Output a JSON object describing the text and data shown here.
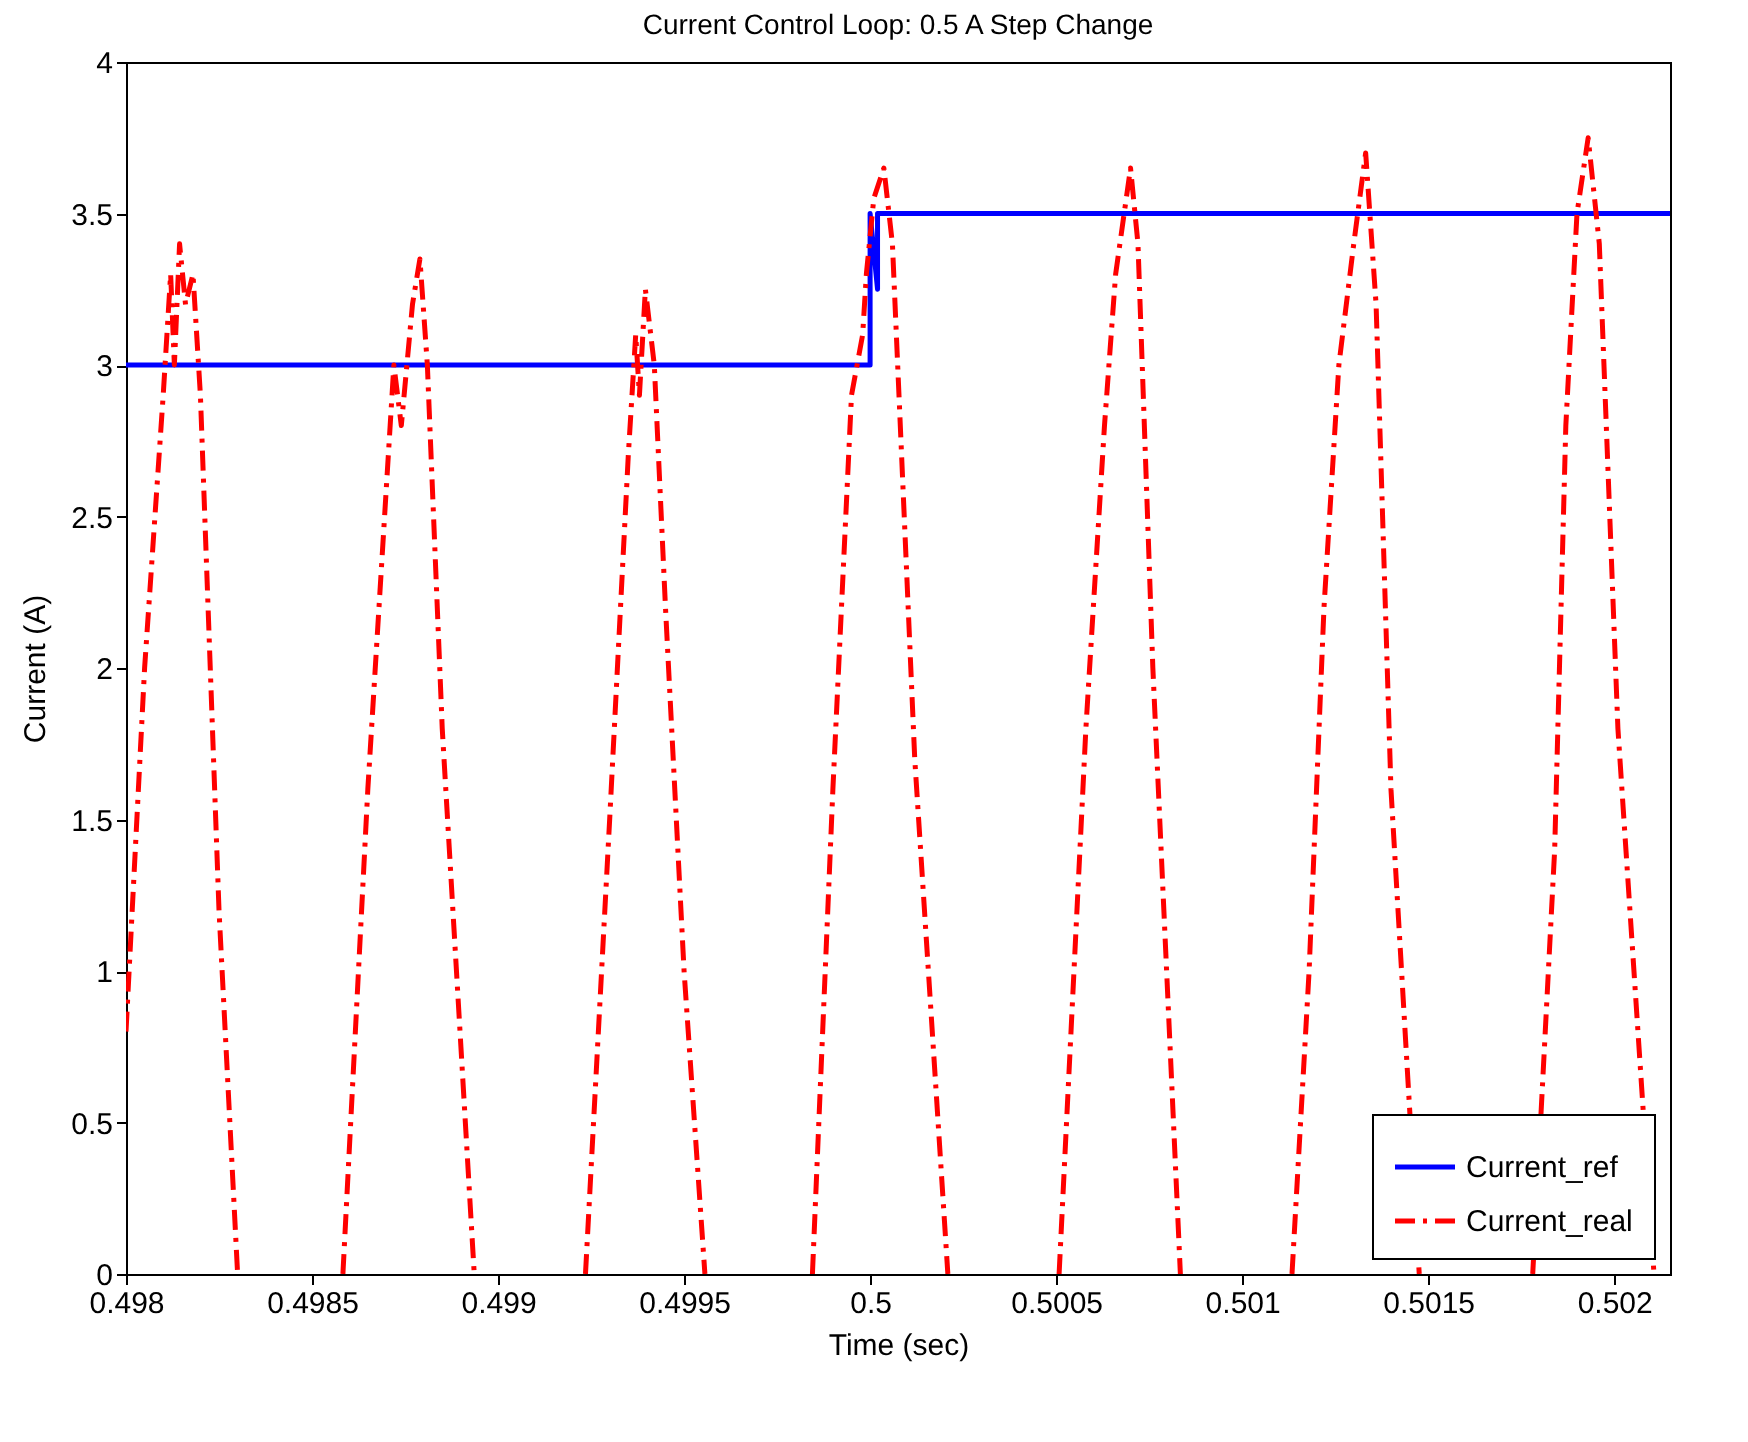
{
  "chart_data": {
    "type": "line",
    "title": "Current Control Loop: 0.5 A Step Change",
    "xlabel": "Time (sec)",
    "ylabel": "Current (A)",
    "xlim": [
      0.498,
      0.50215
    ],
    "xticks": [
      0.498,
      0.4985,
      0.499,
      0.4995,
      0.5,
      0.5005,
      0.501,
      0.5015,
      0.502
    ],
    "ylim": [
      0,
      4
    ],
    "yticks": [
      0,
      0.5,
      1,
      1.5,
      2,
      2.5,
      3,
      3.5,
      4
    ],
    "legend": "bottom right",
    "series": [
      {
        "name": "Current_ref",
        "color": "#0000ff",
        "line_style": "solid",
        "x": [
          0.498,
          0.5,
          0.5,
          0.50002,
          0.50002,
          0.50215
        ],
        "values": [
          3,
          3,
          3.5,
          3.25,
          3.5,
          3.5
        ]
      },
      {
        "name": "Current_real",
        "color": "#ff0000",
        "line_style": "dashdot",
        "x": [
          0.498,
          0.49805,
          0.4981,
          0.49812,
          0.49813,
          0.498144,
          0.49816,
          0.49818,
          0.4982,
          0.49825,
          0.4983,
          0.49845,
          0.498583,
          0.49865,
          0.4987,
          0.49872,
          0.49874,
          0.49877,
          0.49879,
          0.49881,
          0.49885,
          0.498936,
          0.49908,
          0.499235,
          0.4993,
          0.49935,
          0.49937,
          0.49938,
          0.499396,
          0.49942,
          0.49945,
          0.4995,
          0.499556,
          0.4997,
          0.499845,
          0.4999,
          0.49995,
          0.49998,
          0.49999,
          0.50001,
          0.500037,
          0.50006,
          0.50012,
          0.500209,
          0.50036,
          0.500508,
          0.50058,
          0.50063,
          0.50066,
          0.5007,
          0.50072,
          0.50076,
          0.500834,
          0.50098,
          0.501134,
          0.50118,
          0.50122,
          0.50126,
          0.5013,
          0.501332,
          0.50136,
          0.5014,
          0.501476,
          0.50163,
          0.501781,
          0.50184,
          0.50187,
          0.5019,
          0.50193,
          0.50196,
          0.50201,
          0.502107
        ],
        "values": [
          0.8,
          2.0,
          2.9,
          3.3,
          3.0,
          3.4,
          3.2,
          3.3,
          2.9,
          1.2,
          0,
          null,
          0,
          1.6,
          2.6,
          3.0,
          2.8,
          3.2,
          3.35,
          3.0,
          1.8,
          0,
          null,
          0,
          1.5,
          2.7,
          3.1,
          2.9,
          3.25,
          3.0,
          2.2,
          1.0,
          0,
          null,
          0,
          1.6,
          2.9,
          3.1,
          3.3,
          3.55,
          3.65,
          3.4,
          1.7,
          0,
          null,
          0,
          1.8,
          2.8,
          3.3,
          3.65,
          3.4,
          2.0,
          0,
          null,
          0,
          1.0,
          2.2,
          3.0,
          3.4,
          3.7,
          3.2,
          1.6,
          0,
          null,
          0,
          1.4,
          2.8,
          3.5,
          3.75,
          3.4,
          1.8,
          0
        ]
      }
    ]
  }
}
